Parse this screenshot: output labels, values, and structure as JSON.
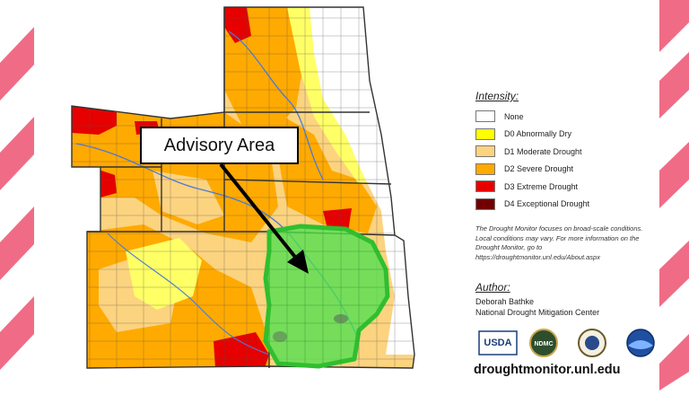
{
  "map": {
    "advisory_label": "Advisory Area"
  },
  "legend": {
    "title": "Intensity:",
    "items": [
      {
        "label": "None",
        "color": "#ffffff"
      },
      {
        "label": "D0 Abnormally Dry",
        "color": "#ffff00"
      },
      {
        "label": "D1 Moderate Drought",
        "color": "#fcd37f"
      },
      {
        "label": "D2 Severe Drought",
        "color": "#ffaa00"
      },
      {
        "label": "D3 Extreme Drought",
        "color": "#e60000"
      },
      {
        "label": "D4 Exceptional Drought",
        "color": "#730000"
      }
    ]
  },
  "note": "The Drought Monitor focuses on broad-scale conditions. Local conditions may vary. For more information on the Drought Monitor, go to https://droughtmonitor.unl.edu/About.aspx",
  "author": {
    "title": "Author:",
    "name": "Deborah Bathke",
    "org": "National Drought Mitigation Center"
  },
  "logos": {
    "usda": "USDA",
    "ndmc": "NDMC"
  },
  "site": "droughtmonitor.unl.edu",
  "colors": {
    "stripe": "#f06c86",
    "advisory_fill": "#4fe04f",
    "advisory_edge": "#2fbf2f",
    "border": "#333333"
  }
}
